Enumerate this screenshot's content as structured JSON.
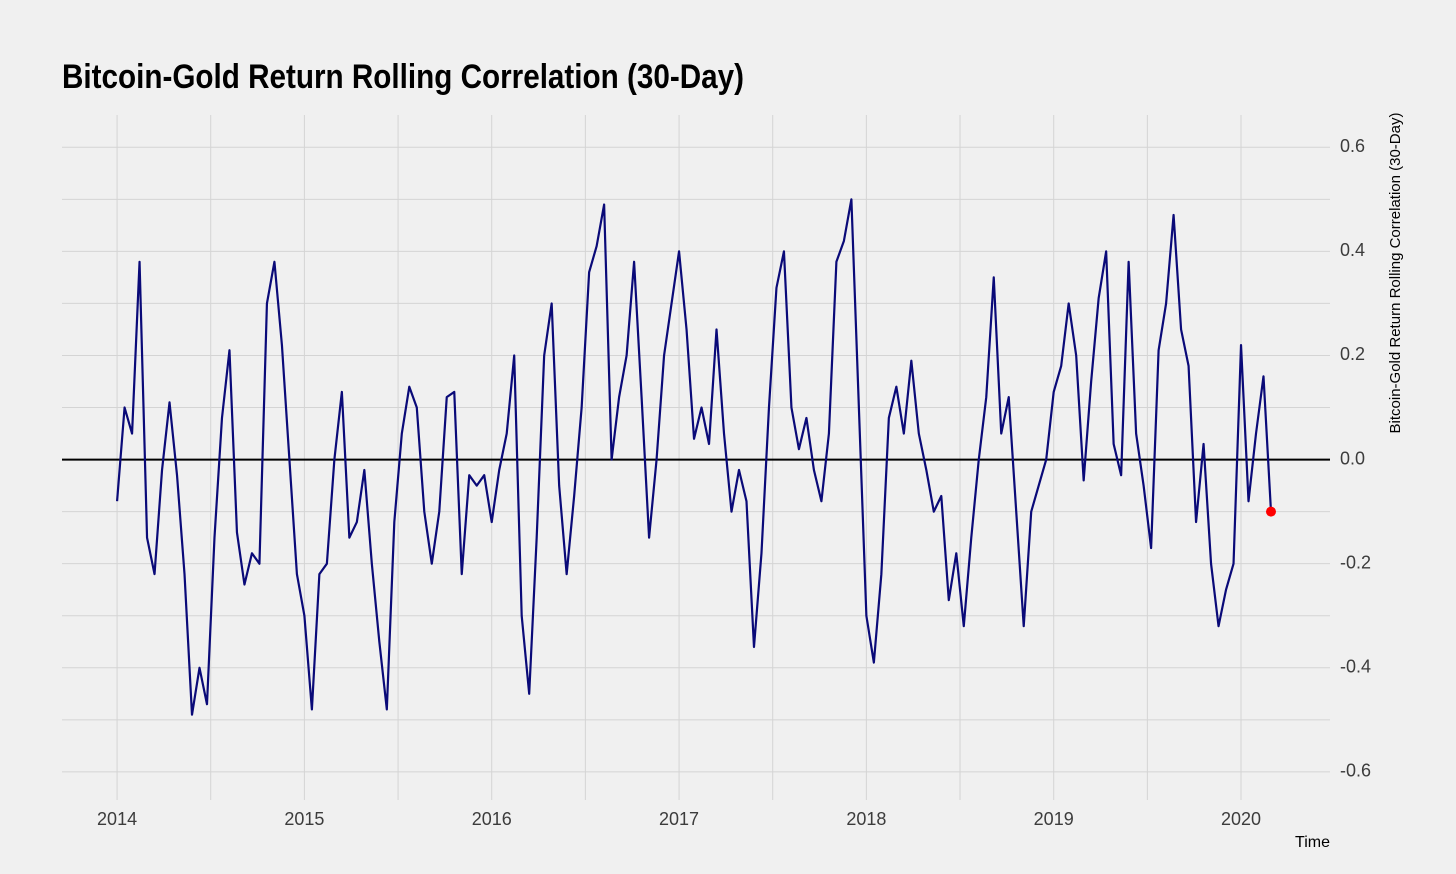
{
  "chart_data": {
    "type": "line",
    "title": "Bitcoin-Gold Return Rolling Correlation (30-Day)",
    "y_axis_label": "Bitcoin-Gold Return Rolling Correlation (30-Day)",
    "x_axis_label": "Time",
    "x": [
      2014.0,
      2014.04,
      2014.08,
      2014.12,
      2014.16,
      2014.2,
      2014.24,
      2014.28,
      2014.32,
      2014.36,
      2014.4,
      2014.44,
      2014.48,
      2014.52,
      2014.56,
      2014.6,
      2014.64,
      2014.68,
      2014.72,
      2014.76,
      2014.8,
      2014.84,
      2014.88,
      2014.92,
      2014.96,
      2015.0,
      2015.04,
      2015.08,
      2015.12,
      2015.16,
      2015.2,
      2015.24,
      2015.28,
      2015.32,
      2015.36,
      2015.4,
      2015.44,
      2015.48,
      2015.52,
      2015.56,
      2015.6,
      2015.64,
      2015.68,
      2015.72,
      2015.76,
      2015.8,
      2015.84,
      2015.88,
      2015.92,
      2015.96,
      2016.0,
      2016.04,
      2016.08,
      2016.12,
      2016.16,
      2016.2,
      2016.24,
      2016.28,
      2016.32,
      2016.36,
      2016.4,
      2016.44,
      2016.48,
      2016.52,
      2016.56,
      2016.6,
      2016.64,
      2016.68,
      2016.72,
      2016.76,
      2016.8,
      2016.84,
      2016.88,
      2016.92,
      2016.96,
      2017.0,
      2017.04,
      2017.08,
      2017.12,
      2017.16,
      2017.2,
      2017.24,
      2017.28,
      2017.32,
      2017.36,
      2017.4,
      2017.44,
      2017.48,
      2017.52,
      2017.56,
      2017.6,
      2017.64,
      2017.68,
      2017.72,
      2017.76,
      2017.8,
      2017.84,
      2017.88,
      2017.92,
      2017.96,
      2018.0,
      2018.04,
      2018.08,
      2018.12,
      2018.16,
      2018.2,
      2018.24,
      2018.28,
      2018.32,
      2018.36,
      2018.4,
      2018.44,
      2018.48,
      2018.52,
      2018.56,
      2018.6,
      2018.64,
      2018.68,
      2018.72,
      2018.76,
      2018.8,
      2018.84,
      2018.88,
      2018.92,
      2018.96,
      2019.0,
      2019.04,
      2019.08,
      2019.12,
      2019.16,
      2019.2,
      2019.24,
      2019.28,
      2019.32,
      2019.36,
      2019.4,
      2019.44,
      2019.48,
      2019.52,
      2019.56,
      2019.6,
      2019.64,
      2019.68,
      2019.72,
      2019.76,
      2019.8,
      2019.84,
      2019.88,
      2019.92,
      2019.96,
      2020.0,
      2020.04,
      2020.08,
      2020.12,
      2020.16
    ],
    "series": [
      {
        "name": "Rolling Correlation",
        "color": "#0a0a78",
        "values": [
          -0.08,
          0.1,
          0.05,
          0.38,
          -0.15,
          -0.22,
          -0.02,
          0.11,
          -0.03,
          -0.22,
          -0.49,
          -0.4,
          -0.47,
          -0.15,
          0.08,
          0.21,
          -0.14,
          -0.24,
          -0.18,
          -0.2,
          0.3,
          0.38,
          0.22,
          0.0,
          -0.22,
          -0.3,
          -0.48,
          -0.22,
          -0.2,
          0.0,
          0.13,
          -0.15,
          -0.12,
          -0.02,
          -0.2,
          -0.35,
          -0.48,
          -0.12,
          0.05,
          0.14,
          0.1,
          -0.1,
          -0.2,
          -0.1,
          0.12,
          0.13,
          -0.22,
          -0.03,
          -0.05,
          -0.03,
          -0.12,
          -0.02,
          0.05,
          0.2,
          -0.3,
          -0.45,
          -0.15,
          0.2,
          0.3,
          -0.05,
          -0.22,
          -0.07,
          0.1,
          0.36,
          0.41,
          0.49,
          0.0,
          0.12,
          0.2,
          0.38,
          0.12,
          -0.15,
          0.0,
          0.2,
          0.3,
          0.4,
          0.25,
          0.04,
          0.1,
          0.03,
          0.25,
          0.05,
          -0.1,
          -0.02,
          -0.08,
          -0.36,
          -0.18,
          0.1,
          0.33,
          0.4,
          0.1,
          0.02,
          0.08,
          -0.02,
          -0.08,
          0.05,
          0.38,
          0.42,
          0.5,
          0.1,
          -0.3,
          -0.39,
          -0.22,
          0.08,
          0.14,
          0.05,
          0.19,
          0.05,
          -0.02,
          -0.1,
          -0.07,
          -0.27,
          -0.18,
          -0.32,
          -0.15,
          0.0,
          0.12,
          0.35,
          0.05,
          0.12,
          -0.1,
          -0.32,
          -0.1,
          -0.05,
          0.0,
          0.13,
          0.18,
          0.3,
          0.2,
          -0.04,
          0.15,
          0.31,
          0.4,
          0.03,
          -0.03,
          0.38,
          0.05,
          -0.05,
          -0.17,
          0.21,
          0.3,
          0.47,
          0.25,
          0.18,
          -0.12,
          0.03,
          -0.2,
          -0.32,
          -0.25,
          -0.2,
          0.22,
          -0.08,
          0.05,
          0.16,
          -0.1
        ]
      }
    ],
    "highlight_color": "#ff0000",
    "xlim": [
      2013.706,
      2020.475
    ],
    "xticks": [
      2014,
      2015,
      2016,
      2017,
      2018,
      2019,
      2020
    ],
    "xminorticks": [
      2014.5,
      2015.5,
      2016.5,
      2017.5,
      2018.5,
      2019.5
    ],
    "ylim": [
      -0.654,
      0.662
    ],
    "yticks": [
      0.6,
      0.4,
      0.2,
      {
        "value": 0,
        "label": "0.0"
      },
      -0.2,
      -0.4,
      -0.6
    ],
    "yminorticks": [
      0.5,
      0.3,
      0.1,
      -0.1,
      -0.3,
      -0.5
    ],
    "grid": true
  }
}
